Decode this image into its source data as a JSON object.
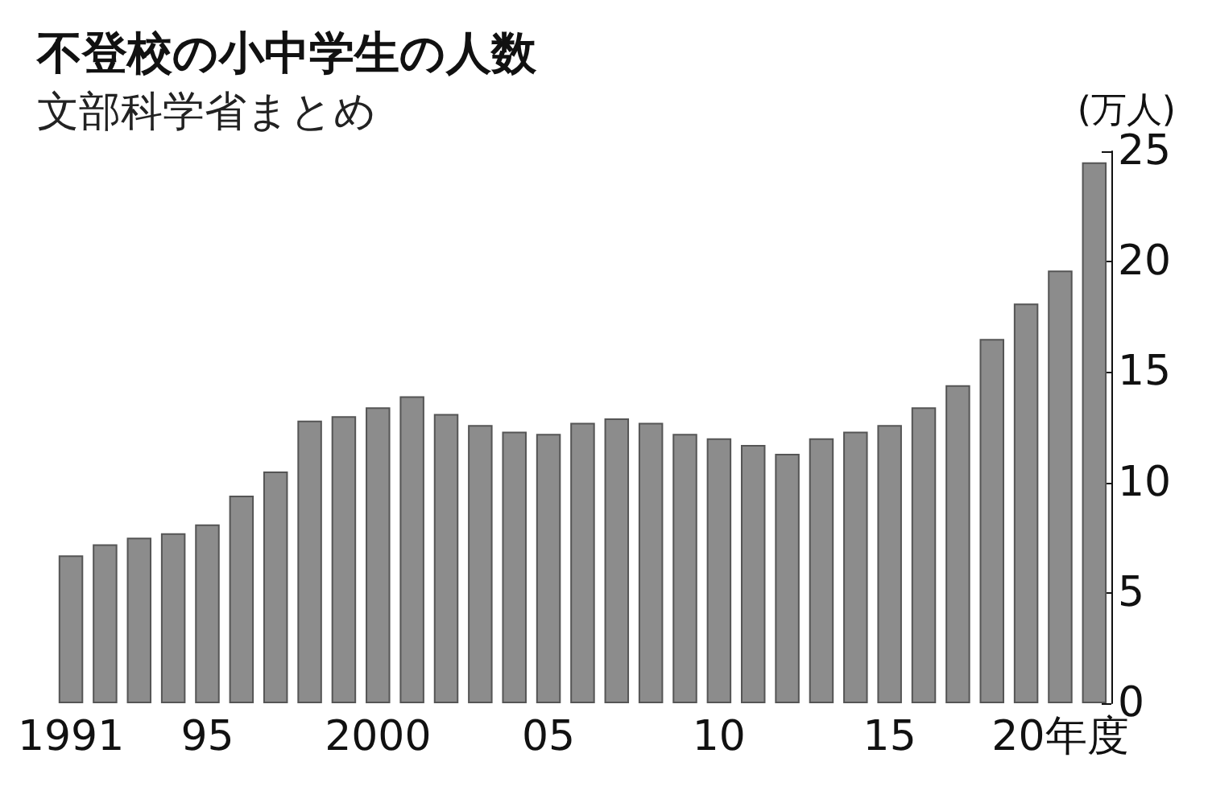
{
  "chart_data": {
    "type": "bar",
    "title": "不登校の小中学生の人数",
    "subtitle": "文部科学省まとめ",
    "ylabel": "(万人)",
    "categories": [
      "1991",
      null,
      null,
      null,
      "95",
      null,
      null,
      null,
      null,
      "2000",
      null,
      null,
      null,
      null,
      "05",
      null,
      null,
      null,
      null,
      "10",
      null,
      null,
      null,
      null,
      "15",
      null,
      null,
      null,
      null,
      "20年度",
      null
    ],
    "values": [
      6.7,
      7.2,
      7.5,
      7.7,
      8.1,
      9.4,
      10.5,
      12.8,
      13.0,
      13.4,
      13.9,
      13.1,
      12.6,
      12.3,
      12.2,
      12.7,
      12.9,
      12.7,
      12.2,
      12.0,
      11.7,
      11.3,
      12.0,
      12.3,
      12.6,
      13.4,
      14.4,
      16.5,
      18.1,
      19.6,
      24.5
    ],
    "color": "#8c8c8c",
    "ylim": [
      0,
      25
    ],
    "yticks": [
      0,
      5,
      10,
      15,
      20,
      25
    ],
    "grid": false
  }
}
